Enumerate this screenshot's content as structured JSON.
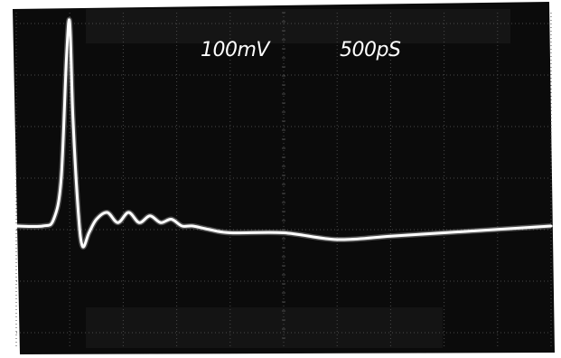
{
  "scope": {
    "volts_per_div": "100mV",
    "time_per_div": "500pS"
  },
  "chart_data": {
    "type": "line",
    "title": "",
    "xlabel": "",
    "ylabel": "",
    "x_unit": "ps",
    "y_unit": "mV",
    "grid": true,
    "xlim": [
      0,
      5000
    ],
    "ylim": [
      -400,
      400
    ],
    "series": [
      {
        "x": [
          0,
          250,
          350,
          420,
          470,
          500,
          530,
          580,
          620,
          680,
          750,
          850,
          950,
          1050,
          1150,
          1250,
          1350,
          1450,
          1550,
          1650,
          1800,
          2000,
          2500,
          3000,
          3500,
          4000,
          4500,
          5000
        ],
        "values": [
          0,
          0,
          10,
          70,
          250,
          300,
          160,
          20,
          -30,
          -10,
          10,
          20,
          5,
          20,
          5,
          15,
          5,
          10,
          0,
          0,
          -5,
          -10,
          -10,
          -20,
          -15,
          -10,
          -5,
          0
        ]
      }
    ]
  },
  "colors": {
    "background": "#0b0b0b",
    "grid": "#4a4a4a",
    "trace": "#ffffff",
    "readout": "#ffffff"
  }
}
